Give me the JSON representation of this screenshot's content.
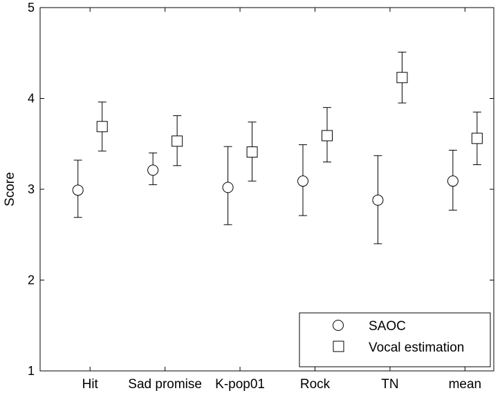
{
  "chart_data": {
    "type": "scatter",
    "title": "",
    "xlabel": "",
    "ylabel": "Score",
    "ylim": [
      1,
      5
    ],
    "yticks": [
      1,
      2,
      3,
      4,
      5
    ],
    "grid": false,
    "legend_position": "bottom-right",
    "categories": [
      "Hit",
      "Sad promise",
      "K-pop01",
      "Rock",
      "TN",
      "mean"
    ],
    "series": [
      {
        "name": "SAOC",
        "marker": "circle",
        "color": "#000000",
        "values": [
          2.99,
          3.21,
          3.02,
          3.09,
          2.88,
          3.09
        ],
        "error_low": [
          2.69,
          3.05,
          2.61,
          2.71,
          2.4,
          2.77
        ],
        "error_high": [
          3.32,
          3.4,
          3.47,
          3.49,
          3.37,
          3.43
        ]
      },
      {
        "name": "Vocal estimation",
        "marker": "square",
        "color": "#000000",
        "values": [
          3.69,
          3.53,
          3.41,
          3.59,
          4.23,
          3.56
        ],
        "error_low": [
          3.42,
          3.26,
          3.09,
          3.3,
          3.95,
          3.27
        ],
        "error_high": [
          3.96,
          3.81,
          3.74,
          3.9,
          4.51,
          3.85
        ]
      }
    ]
  }
}
